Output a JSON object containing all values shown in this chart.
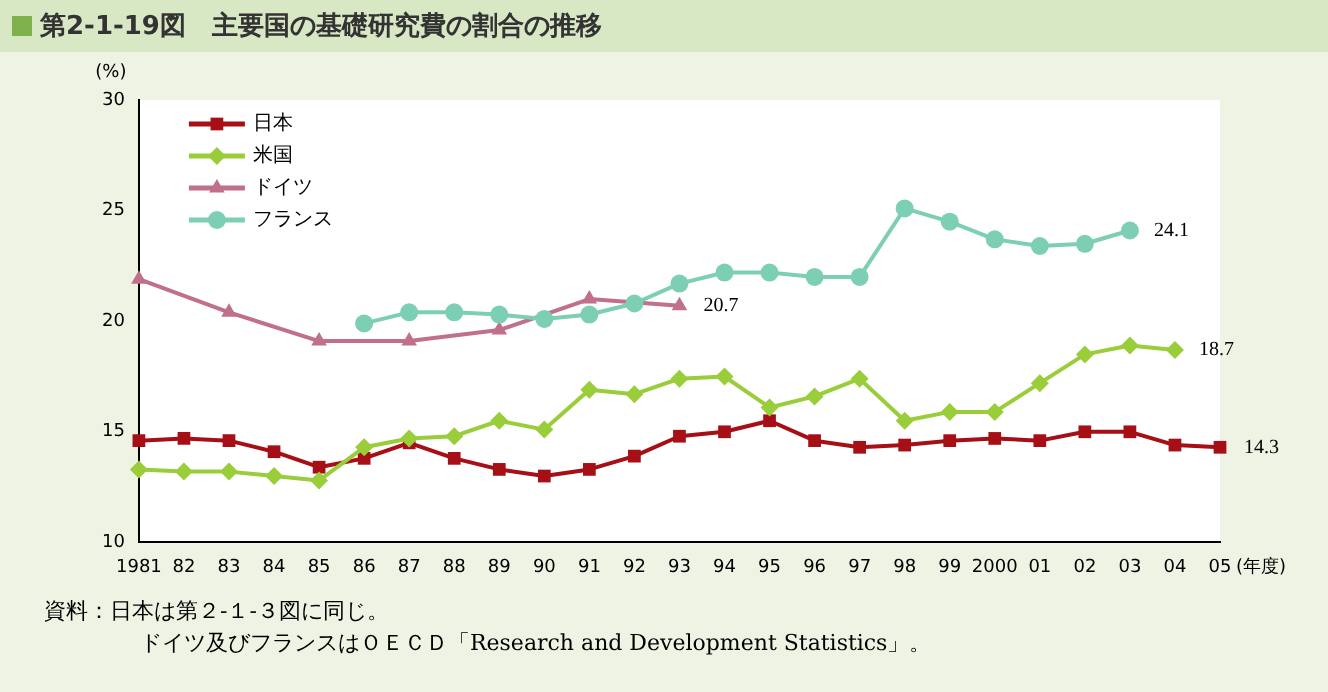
{
  "chart_data": {
    "type": "line",
    "title": "第2-1-19図　主要国の基礎研究費の割合の推移",
    "ylabel": "(%)",
    "xlabel": "(年度)",
    "categories": [
      "1981",
      "82",
      "83",
      "84",
      "85",
      "86",
      "87",
      "88",
      "89",
      "90",
      "91",
      "92",
      "93",
      "94",
      "95",
      "96",
      "97",
      "98",
      "99",
      "2000",
      "01",
      "02",
      "03",
      "04",
      "05"
    ],
    "series": [
      {
        "name": "日本",
        "color": "#a50f15",
        "marker": "square",
        "values": [
          14.6,
          14.7,
          14.6,
          14.1,
          13.4,
          13.8,
          14.5,
          13.8,
          13.3,
          13.0,
          13.3,
          13.9,
          14.8,
          15.0,
          15.5,
          14.6,
          14.3,
          14.4,
          14.6,
          14.7,
          14.6,
          15.0,
          15.0,
          14.4,
          14.3
        ],
        "value_labels": [
          null,
          null,
          null,
          null,
          null,
          null,
          null,
          null,
          null,
          null,
          null,
          null,
          null,
          null,
          null,
          null,
          null,
          null,
          null,
          null,
          null,
          null,
          null,
          null,
          "14.3"
        ]
      },
      {
        "name": "米国",
        "color": "#9acd3a",
        "marker": "diamond",
        "values": [
          13.3,
          13.2,
          13.2,
          13.0,
          12.8,
          14.3,
          14.7,
          14.8,
          15.5,
          15.1,
          16.9,
          16.7,
          17.4,
          17.5,
          16.1,
          16.6,
          17.4,
          15.5,
          15.9,
          15.9,
          17.2,
          18.5,
          18.9,
          18.7,
          null
        ],
        "value_labels": [
          null,
          null,
          null,
          null,
          null,
          null,
          null,
          null,
          null,
          null,
          null,
          null,
          null,
          null,
          null,
          null,
          null,
          null,
          null,
          null,
          null,
          null,
          null,
          "18.7",
          null
        ]
      },
      {
        "name": "ドイツ",
        "color": "#c0708a",
        "marker": "triangle",
        "values": [
          21.9,
          null,
          20.4,
          null,
          19.1,
          null,
          19.1,
          null,
          19.6,
          null,
          21.0,
          null,
          20.7,
          null,
          null,
          null,
          null,
          null,
          null,
          null,
          null,
          null,
          null,
          null,
          null
        ],
        "value_labels": [
          null,
          null,
          null,
          null,
          null,
          null,
          null,
          null,
          null,
          null,
          null,
          null,
          "20.7",
          null,
          null,
          null,
          null,
          null,
          null,
          null,
          null,
          null,
          null,
          null,
          null
        ]
      },
      {
        "name": "フランス",
        "color": "#7ccfb5",
        "marker": "circle",
        "values": [
          null,
          null,
          null,
          null,
          null,
          19.9,
          20.4,
          20.4,
          20.3,
          20.1,
          20.3,
          20.8,
          21.7,
          22.2,
          22.2,
          22.0,
          22.0,
          25.1,
          24.5,
          23.7,
          23.4,
          23.5,
          24.1,
          null,
          null
        ],
        "value_labels": [
          null,
          null,
          null,
          null,
          null,
          null,
          null,
          null,
          null,
          null,
          null,
          null,
          null,
          null,
          null,
          null,
          null,
          null,
          null,
          null,
          null,
          null,
          "24.1",
          null,
          null
        ]
      }
    ],
    "ylim": [
      10,
      30
    ],
    "yticks": [
      10,
      15,
      20,
      25,
      30
    ],
    "grid": false,
    "legend": "top left",
    "annotations": [
      "資料：日本は第２-１-３図に同じ。",
      "ドイツ及びフランスはＯＥＣＤ「Research and Development Statistics」。"
    ]
  }
}
